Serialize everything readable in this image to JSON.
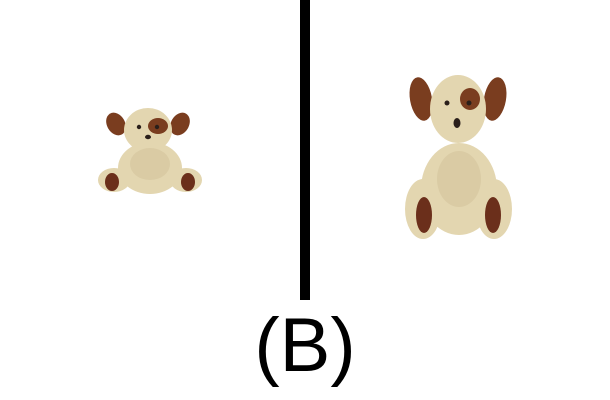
{
  "caption": "(B)",
  "colors": {
    "background": "#ffffff",
    "divider": "#000000",
    "fur": "#e3d6b0",
    "fur_shadow": "#c8b88f",
    "ears_and_patches": "#7a3d1f",
    "paw_pads": "#6b2f1b",
    "eyes_nose": "#2a1f1a"
  },
  "images": {
    "left": "small-plush-puppy-toy",
    "right": "large-plush-puppy-toy"
  }
}
